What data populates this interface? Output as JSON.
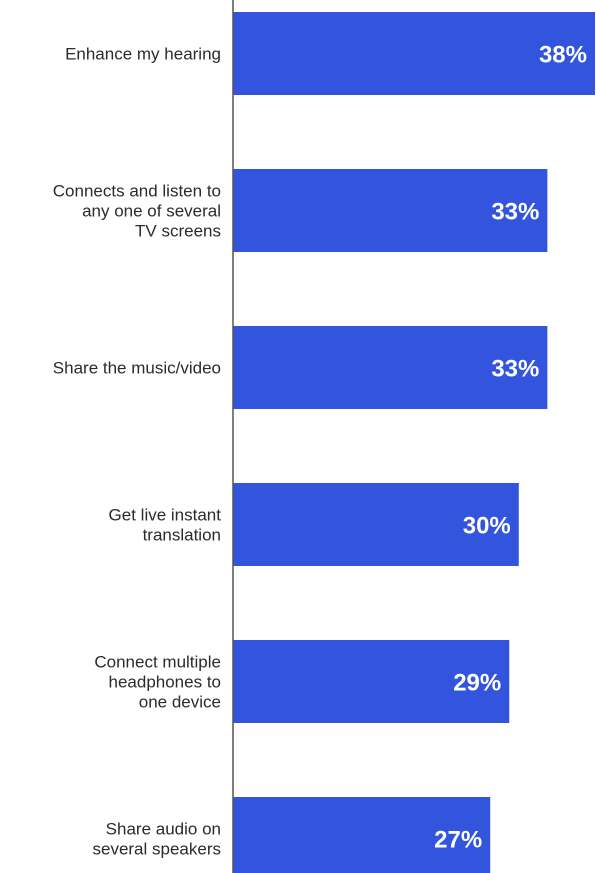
{
  "chart_data": {
    "type": "bar",
    "orientation": "horizontal",
    "categories": [
      [
        "Enhance my hearing"
      ],
      [
        "Connects and listen to",
        "any one of several",
        "TV screens"
      ],
      [
        "Share the music/video"
      ],
      [
        "Get live instant",
        "translation"
      ],
      [
        "Connect multiple",
        "headphones to",
        "one device"
      ],
      [
        "Share audio on",
        "several speakers"
      ]
    ],
    "values": [
      38,
      33,
      33,
      30,
      29,
      27
    ],
    "value_labels": [
      "38%",
      "33%",
      "33%",
      "30%",
      "29%",
      "27%"
    ],
    "value_unit": "%",
    "xlim": [
      0,
      38
    ],
    "grid": false,
    "legend": "none",
    "title": "",
    "xlabel": "",
    "ylabel": ""
  },
  "colors": {
    "bar": "#3355DD",
    "axis": "#555555",
    "category_text": "#2B2B2B",
    "value_text": "#FFFFFF"
  }
}
